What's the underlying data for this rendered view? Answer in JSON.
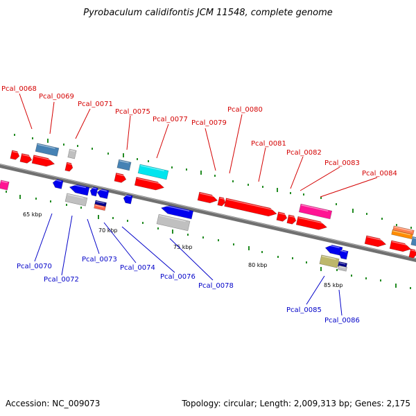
{
  "title": "Pyrobaculum calidifontis JCM 11548, complete genome",
  "footer": {
    "accession": "Accession: NC_009073",
    "summary": "Topology: circular; Length: 2,009,313 bp; Genes: 2,175"
  },
  "colors": {
    "top_label": "#d40000",
    "bottom_label": "#0000c8",
    "dot": "#228b22",
    "backbone": "#808080"
  },
  "ticks": [
    "65 kbp",
    "70 kbp",
    "75 kbp",
    "80 kbp",
    "85 kbp"
  ],
  "genes_top": [
    "Pcal_0068",
    "Pcal_0069",
    "Pcal_0071",
    "Pcal_0075",
    "Pcal_0077",
    "Pcal_0079",
    "Pcal_0080",
    "Pcal_0081",
    "Pcal_0082",
    "Pcal_0083",
    "Pcal_0084"
  ],
  "genes_bottom": [
    "Pcal_0070",
    "Pcal_0072",
    "Pcal_0073",
    "Pcal_0074",
    "Pcal_0076",
    "Pcal_0078",
    "Pcal_0085",
    "Pcal_0086"
  ]
}
